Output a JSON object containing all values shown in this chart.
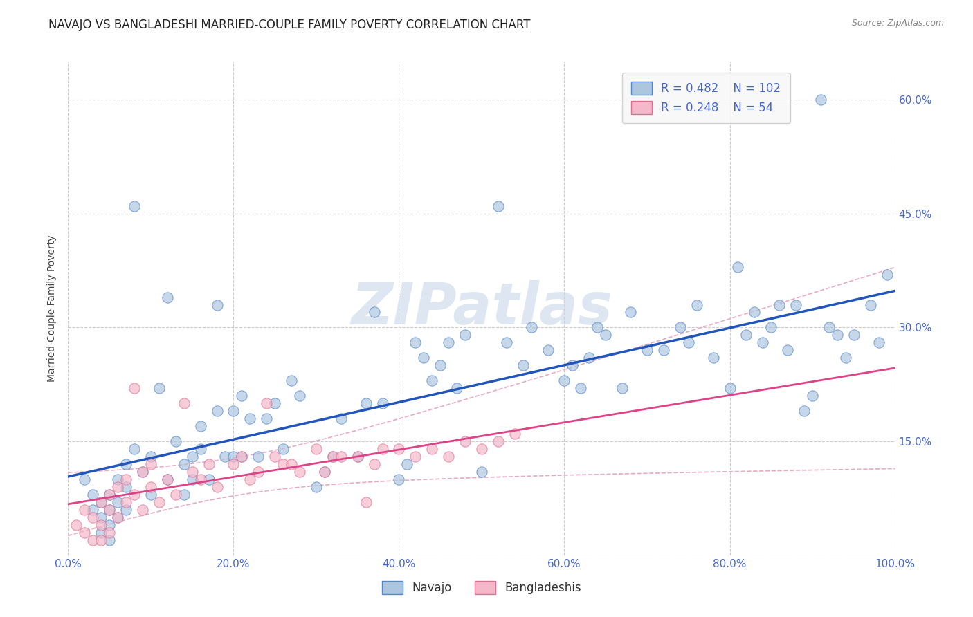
{
  "title": "NAVAJO VS BANGLADESHI MARRIED-COUPLE FAMILY POVERTY CORRELATION CHART",
  "source": "Source: ZipAtlas.com",
  "ylabel": "Married-Couple Family Poverty",
  "watermark": "ZIPatlas",
  "navajo_R": 0.482,
  "navajo_N": 102,
  "bangladeshi_R": 0.248,
  "bangladeshi_N": 54,
  "navajo_color": "#adc6e0",
  "navajo_edge_color": "#5588cc",
  "navajo_line_color": "#2255bb",
  "bangladeshi_color": "#f5b8cb",
  "bangladeshi_edge_color": "#e07090",
  "bangladeshi_line_color": "#dd4488",
  "bangladeshi_ci_color": "#e8aac0",
  "xlim": [
    0.0,
    1.0
  ],
  "ylim": [
    0.0,
    0.65
  ],
  "xticks": [
    0.0,
    0.2,
    0.4,
    0.6,
    0.8,
    1.0
  ],
  "yticks": [
    0.0,
    0.15,
    0.3,
    0.45,
    0.6
  ],
  "xticklabels": [
    "0.0%",
    "20.0%",
    "40.0%",
    "60.0%",
    "80.0%",
    "100.0%"
  ],
  "yticklabels_right": [
    "",
    "15.0%",
    "30.0%",
    "45.0%",
    "60.0%"
  ],
  "background_color": "#ffffff",
  "grid_color": "#cccccc",
  "title_fontsize": 12,
  "label_fontsize": 10,
  "tick_fontsize": 11,
  "legend_fontsize": 12,
  "watermark_fontsize": 60,
  "watermark_color": "#c8d8e8",
  "tick_color": "#4466cc",
  "navajo_x": [
    0.02,
    0.03,
    0.03,
    0.04,
    0.04,
    0.04,
    0.05,
    0.05,
    0.05,
    0.05,
    0.06,
    0.06,
    0.06,
    0.07,
    0.07,
    0.07,
    0.08,
    0.08,
    0.09,
    0.1,
    0.1,
    0.11,
    0.12,
    0.12,
    0.13,
    0.14,
    0.14,
    0.15,
    0.15,
    0.16,
    0.16,
    0.17,
    0.18,
    0.18,
    0.19,
    0.2,
    0.2,
    0.21,
    0.21,
    0.22,
    0.23,
    0.24,
    0.25,
    0.26,
    0.27,
    0.28,
    0.3,
    0.31,
    0.32,
    0.33,
    0.35,
    0.36,
    0.37,
    0.38,
    0.4,
    0.41,
    0.42,
    0.43,
    0.44,
    0.45,
    0.46,
    0.47,
    0.48,
    0.5,
    0.52,
    0.53,
    0.55,
    0.56,
    0.58,
    0.6,
    0.61,
    0.62,
    0.63,
    0.64,
    0.65,
    0.67,
    0.68,
    0.7,
    0.72,
    0.74,
    0.75,
    0.76,
    0.78,
    0.8,
    0.81,
    0.82,
    0.83,
    0.84,
    0.85,
    0.86,
    0.87,
    0.88,
    0.89,
    0.9,
    0.91,
    0.92,
    0.93,
    0.94,
    0.95,
    0.97,
    0.98,
    0.99
  ],
  "navajo_y": [
    0.1,
    0.08,
    0.06,
    0.05,
    0.07,
    0.03,
    0.06,
    0.08,
    0.04,
    0.02,
    0.07,
    0.1,
    0.05,
    0.12,
    0.09,
    0.06,
    0.46,
    0.14,
    0.11,
    0.08,
    0.13,
    0.22,
    0.34,
    0.1,
    0.15,
    0.12,
    0.08,
    0.13,
    0.1,
    0.14,
    0.17,
    0.1,
    0.33,
    0.19,
    0.13,
    0.13,
    0.19,
    0.21,
    0.13,
    0.18,
    0.13,
    0.18,
    0.2,
    0.14,
    0.23,
    0.21,
    0.09,
    0.11,
    0.13,
    0.18,
    0.13,
    0.2,
    0.32,
    0.2,
    0.1,
    0.12,
    0.28,
    0.26,
    0.23,
    0.25,
    0.28,
    0.22,
    0.29,
    0.11,
    0.46,
    0.28,
    0.25,
    0.3,
    0.27,
    0.23,
    0.25,
    0.22,
    0.26,
    0.3,
    0.29,
    0.22,
    0.32,
    0.27,
    0.27,
    0.3,
    0.28,
    0.33,
    0.26,
    0.22,
    0.38,
    0.29,
    0.32,
    0.28,
    0.3,
    0.33,
    0.27,
    0.33,
    0.19,
    0.21,
    0.6,
    0.3,
    0.29,
    0.26,
    0.29,
    0.33,
    0.28,
    0.37
  ],
  "bangladeshi_x": [
    0.01,
    0.02,
    0.02,
    0.03,
    0.03,
    0.04,
    0.04,
    0.04,
    0.05,
    0.05,
    0.05,
    0.06,
    0.06,
    0.07,
    0.07,
    0.08,
    0.08,
    0.09,
    0.09,
    0.1,
    0.1,
    0.11,
    0.12,
    0.13,
    0.14,
    0.15,
    0.16,
    0.17,
    0.18,
    0.2,
    0.21,
    0.22,
    0.23,
    0.24,
    0.25,
    0.26,
    0.27,
    0.28,
    0.3,
    0.31,
    0.32,
    0.33,
    0.35,
    0.36,
    0.37,
    0.38,
    0.4,
    0.42,
    0.44,
    0.46,
    0.48,
    0.5,
    0.52,
    0.54
  ],
  "bangladeshi_y": [
    0.04,
    0.03,
    0.06,
    0.02,
    0.05,
    0.04,
    0.07,
    0.02,
    0.08,
    0.06,
    0.03,
    0.09,
    0.05,
    0.07,
    0.1,
    0.22,
    0.08,
    0.11,
    0.06,
    0.09,
    0.12,
    0.07,
    0.1,
    0.08,
    0.2,
    0.11,
    0.1,
    0.12,
    0.09,
    0.12,
    0.13,
    0.1,
    0.11,
    0.2,
    0.13,
    0.12,
    0.12,
    0.11,
    0.14,
    0.11,
    0.13,
    0.13,
    0.13,
    0.07,
    0.12,
    0.14,
    0.14,
    0.13,
    0.14,
    0.13,
    0.15,
    0.14,
    0.15,
    0.16
  ]
}
